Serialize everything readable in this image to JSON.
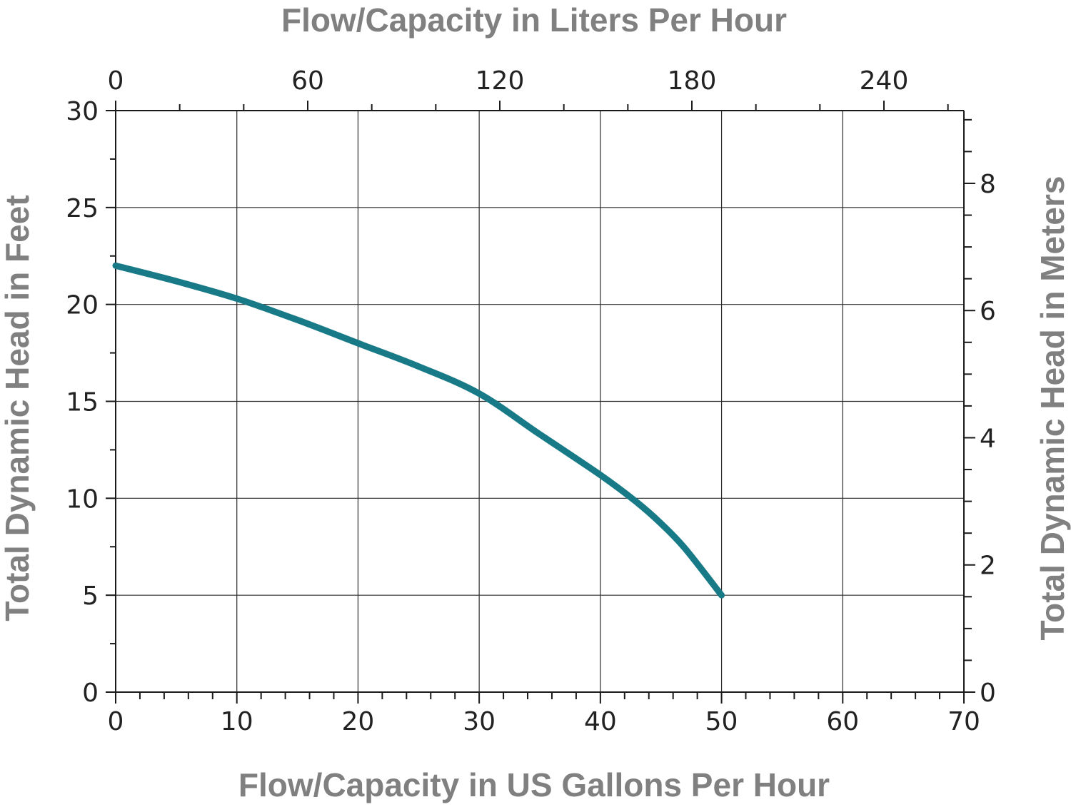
{
  "chart_data": {
    "type": "line",
    "xlabel_bottom": "Flow/Capacity in US Gallons Per Hour",
    "xlabel_top": "Flow/Capacity in Liters Per Hour",
    "ylabel_left": "Total Dynamic Head in Feet",
    "ylabel_right": "Total Dynamic Head in Meters",
    "x_bottom": {
      "lim": [
        0,
        70
      ],
      "ticks": [
        0,
        10,
        20,
        30,
        40,
        50,
        60,
        70
      ],
      "minor_step": 2
    },
    "x_top": {
      "lim": [
        0,
        264.98
      ],
      "ticks": [
        0,
        60,
        120,
        180,
        240
      ],
      "minor_step": 20
    },
    "y_left": {
      "lim": [
        0,
        30
      ],
      "ticks": [
        0,
        5,
        10,
        15,
        20,
        25,
        30
      ],
      "minor_step": 2.5
    },
    "y_right": {
      "lim": [
        0,
        9.144
      ],
      "ticks": [
        0,
        2,
        4,
        6,
        8
      ],
      "minor_step": 0.5
    },
    "grid": true,
    "series": [
      {
        "color": "#177a86",
        "x": [
          0,
          5,
          10,
          15,
          20,
          25,
          30,
          35,
          40,
          43,
          45,
          47,
          50
        ],
        "y": [
          22.0,
          21.2,
          20.3,
          19.2,
          18.0,
          16.8,
          15.4,
          13.3,
          11.2,
          9.8,
          8.7,
          7.4,
          5.0
        ]
      }
    ]
  }
}
